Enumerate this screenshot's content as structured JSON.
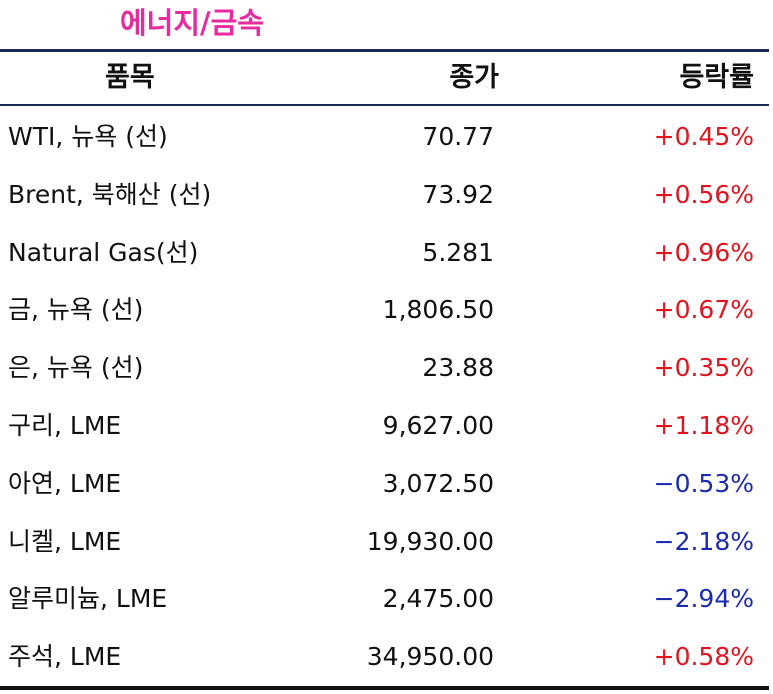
{
  "title": "에너지/금속",
  "header": {
    "name": "품목",
    "close": "종가",
    "change": "등락률"
  },
  "colors": {
    "title": "#e62aa0",
    "up": "#e0141e",
    "down": "#1a2bb0",
    "rule": "#1b2a56"
  },
  "rows": [
    {
      "name": "WTI, 뉴욕 (선)",
      "close": "70.77",
      "change": "+0.45%",
      "dir": "up"
    },
    {
      "name": "Brent, 북해산 (선)",
      "close": "73.92",
      "change": "+0.56%",
      "dir": "up"
    },
    {
      "name": "Natural Gas(선)",
      "close": "5.281",
      "change": "+0.96%",
      "dir": "up"
    },
    {
      "name": "금, 뉴욕  (선)",
      "close": "1,806.50",
      "change": "+0.67%",
      "dir": "up"
    },
    {
      "name": "은, 뉴욕  (선)",
      "close": "23.88",
      "change": "+0.35%",
      "dir": "up"
    },
    {
      "name": "구리, LME",
      "close": "9,627.00",
      "change": "+1.18%",
      "dir": "up"
    },
    {
      "name": "아연, LME",
      "close": "3,072.50",
      "change": "−0.53%",
      "dir": "down"
    },
    {
      "name": "니켈, LME",
      "close": "19,930.00",
      "change": "−2.18%",
      "dir": "down"
    },
    {
      "name": "알루미늄, LME",
      "close": "2,475.00",
      "change": "−2.94%",
      "dir": "down"
    },
    {
      "name": "주석, LME",
      "close": "34,950.00",
      "change": "+0.58%",
      "dir": "up"
    }
  ]
}
